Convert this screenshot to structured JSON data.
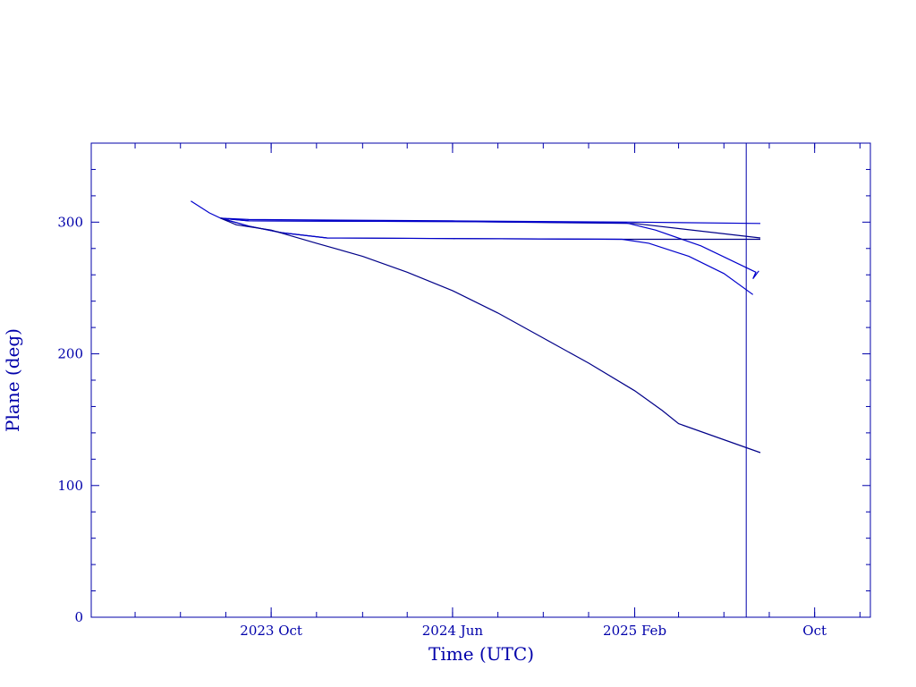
{
  "chart_data": {
    "type": "line",
    "xlabel": "Time (UTC)",
    "ylabel": "Plane (deg)",
    "xlim": [
      "2023-02-01",
      "2025-12-15"
    ],
    "ylim": [
      0,
      360
    ],
    "x_ticks": [
      {
        "date": "2023-10-01",
        "label": "2023 Oct"
      },
      {
        "date": "2024-06-01",
        "label": "2024 Jun"
      },
      {
        "date": "2025-02-01",
        "label": "2025 Feb"
      },
      {
        "date": "2025-10-01",
        "label": "Oct"
      }
    ],
    "y_ticks": [
      0,
      100,
      200,
      300
    ],
    "grid": false,
    "colors": {
      "axis": "#0000aa",
      "series": "#0000cc",
      "series_dark": "#000088"
    },
    "marker_line_date": "2025-07-01",
    "series": [
      {
        "points": [
          [
            "2023-06-15",
            316
          ],
          [
            "2023-07-10",
            307
          ],
          [
            "2023-07-25",
            303
          ],
          [
            "2023-09-01",
            302
          ],
          [
            "2024-06-01",
            301
          ],
          [
            "2025-02-01",
            300
          ],
          [
            "2025-07-20",
            299
          ]
        ]
      },
      {
        "points": [
          [
            "2023-07-25",
            303
          ],
          [
            "2023-09-01",
            301
          ],
          [
            "2024-06-01",
            300.5
          ],
          [
            "2025-02-01",
            299
          ],
          [
            "2025-07-20",
            288
          ]
        ]
      },
      {
        "points": [
          [
            "2023-07-25",
            303
          ],
          [
            "2023-09-01",
            301
          ],
          [
            "2024-06-01",
            300.5
          ],
          [
            "2025-01-20",
            299.5
          ],
          [
            "2025-03-01",
            294
          ],
          [
            "2025-05-01",
            282
          ],
          [
            "2025-07-14",
            262
          ],
          [
            "2025-07-10",
            257
          ],
          [
            "2025-07-18",
            263
          ]
        ]
      },
      {
        "points": [
          [
            "2023-07-25",
            303
          ],
          [
            "2023-09-01",
            297
          ],
          [
            "2023-10-15",
            292
          ],
          [
            "2023-12-15",
            288
          ],
          [
            "2024-06-01",
            287.5
          ],
          [
            "2025-01-15",
            287
          ],
          [
            "2025-07-20",
            287
          ]
        ]
      },
      {
        "points": [
          [
            "2023-07-25",
            303
          ],
          [
            "2023-09-01",
            297
          ],
          [
            "2023-10-15",
            292
          ],
          [
            "2023-12-15",
            288
          ],
          [
            "2024-06-01",
            287.5
          ],
          [
            "2025-01-15",
            287
          ],
          [
            "2025-02-20",
            284
          ],
          [
            "2025-04-15",
            274
          ],
          [
            "2025-06-01",
            261
          ],
          [
            "2025-07-10",
            245
          ]
        ]
      },
      {
        "points": [
          [
            "2023-07-25",
            303
          ],
          [
            "2023-08-15",
            298
          ],
          [
            "2023-10-01",
            294
          ],
          [
            "2023-12-01",
            284
          ],
          [
            "2024-02-01",
            274
          ],
          [
            "2024-04-01",
            262
          ],
          [
            "2024-06-01",
            248
          ],
          [
            "2024-08-01",
            231
          ],
          [
            "2024-10-01",
            212
          ],
          [
            "2024-12-01",
            193
          ],
          [
            "2025-02-01",
            172
          ],
          [
            "2025-03-10",
            157
          ],
          [
            "2025-04-01",
            147
          ],
          [
            "2025-07-20",
            125
          ]
        ]
      }
    ]
  }
}
